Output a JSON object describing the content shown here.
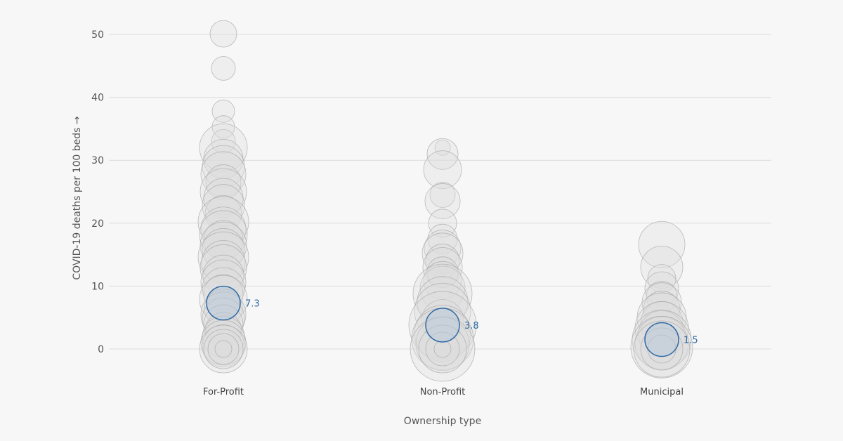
{
  "chart_data": {
    "type": "scatter",
    "ylabel": "COVID-19 deaths per 100 beds →",
    "xlabel": "Ownership type",
    "ylim": [
      0,
      52
    ],
    "yticks": [
      0,
      10,
      20,
      30,
      40,
      50
    ],
    "grid": true,
    "categories": [
      "For-Profit",
      "Non-Profit",
      "Municipal"
    ],
    "colors": {
      "bubble_stroke": "#a6a6a6",
      "bubble_fill": "#dedede",
      "median": "#2f6aa5"
    },
    "series": [
      {
        "category": "For-Profit",
        "median": 7.3,
        "median_label": "7.3",
        "points": [
          {
            "y": 50.1,
            "r": 19
          },
          {
            "y": 44.6,
            "r": 17
          },
          {
            "y": 37.8,
            "r": 16
          },
          {
            "y": 35.3,
            "r": 16
          },
          {
            "y": 33.0,
            "r": 17
          },
          {
            "y": 32.0,
            "r": 34
          },
          {
            "y": 30.2,
            "r": 28
          },
          {
            "y": 29.0,
            "r": 30
          },
          {
            "y": 27.8,
            "r": 32
          },
          {
            "y": 26.5,
            "r": 25
          },
          {
            "y": 25.0,
            "r": 33
          },
          {
            "y": 24.0,
            "r": 28
          },
          {
            "y": 22.8,
            "r": 30
          },
          {
            "y": 21.5,
            "r": 26
          },
          {
            "y": 20.2,
            "r": 36
          },
          {
            "y": 19.0,
            "r": 32
          },
          {
            "y": 18.2,
            "r": 34
          },
          {
            "y": 17.3,
            "r": 28
          },
          {
            "y": 16.5,
            "r": 33
          },
          {
            "y": 15.8,
            "r": 30
          },
          {
            "y": 14.6,
            "r": 36
          },
          {
            "y": 13.8,
            "r": 31
          },
          {
            "y": 12.9,
            "r": 33
          },
          {
            "y": 11.7,
            "r": 29
          },
          {
            "y": 10.6,
            "r": 32
          },
          {
            "y": 9.6,
            "r": 30
          },
          {
            "y": 8.7,
            "r": 28
          },
          {
            "y": 7.9,
            "r": 34
          },
          {
            "y": 6.5,
            "r": 27
          },
          {
            "y": 5.5,
            "r": 32
          },
          {
            "y": 4.8,
            "r": 30
          },
          {
            "y": 3.9,
            "r": 28
          },
          {
            "y": 2.9,
            "r": 26
          },
          {
            "y": 1.9,
            "r": 30
          },
          {
            "y": 1.0,
            "r": 32
          },
          {
            "y": 0.5,
            "r": 30
          },
          {
            "y": 0.0,
            "r": 34
          },
          {
            "y": 0.0,
            "r": 28
          },
          {
            "y": 0.0,
            "r": 22
          },
          {
            "y": 0.0,
            "r": 12
          }
        ]
      },
      {
        "category": "Non-Profit",
        "median": 3.8,
        "median_label": "3.8",
        "points": [
          {
            "y": 32.0,
            "r": 11
          },
          {
            "y": 31.0,
            "r": 22
          },
          {
            "y": 28.5,
            "r": 27
          },
          {
            "y": 24.5,
            "r": 18
          },
          {
            "y": 23.5,
            "r": 25
          },
          {
            "y": 20.0,
            "r": 20
          },
          {
            "y": 17.5,
            "r": 21
          },
          {
            "y": 16.0,
            "r": 26
          },
          {
            "y": 15.2,
            "r": 29
          },
          {
            "y": 14.0,
            "r": 24
          },
          {
            "y": 13.0,
            "r": 28
          },
          {
            "y": 12.2,
            "r": 22
          },
          {
            "y": 10.9,
            "r": 27
          },
          {
            "y": 9.6,
            "r": 32
          },
          {
            "y": 8.8,
            "r": 42
          },
          {
            "y": 7.5,
            "r": 36
          },
          {
            "y": 6.0,
            "r": 40
          },
          {
            "y": 4.5,
            "r": 30
          },
          {
            "y": 3.8,
            "r": 48
          },
          {
            "y": 2.5,
            "r": 40
          },
          {
            "y": 1.6,
            "r": 44
          },
          {
            "y": 0.8,
            "r": 38
          },
          {
            "y": 0.0,
            "r": 46
          },
          {
            "y": 0.0,
            "r": 34
          },
          {
            "y": 0.0,
            "r": 24
          },
          {
            "y": 0.0,
            "r": 12
          }
        ]
      },
      {
        "category": "Municipal",
        "median": 1.5,
        "median_label": "1.5",
        "points": [
          {
            "y": 16.6,
            "r": 33
          },
          {
            "y": 13.0,
            "r": 30
          },
          {
            "y": 11.2,
            "r": 20
          },
          {
            "y": 9.6,
            "r": 24
          },
          {
            "y": 8.3,
            "r": 22
          },
          {
            "y": 7.4,
            "r": 28
          },
          {
            "y": 6.3,
            "r": 26
          },
          {
            "y": 5.0,
            "r": 35
          },
          {
            "y": 4.2,
            "r": 30
          },
          {
            "y": 3.3,
            "r": 38
          },
          {
            "y": 2.4,
            "r": 33
          },
          {
            "y": 1.5,
            "r": 42
          },
          {
            "y": 0.9,
            "r": 38
          },
          {
            "y": 0.3,
            "r": 44
          },
          {
            "y": 0.0,
            "r": 40
          },
          {
            "y": 0.0,
            "r": 30
          },
          {
            "y": 0.0,
            "r": 20
          }
        ]
      }
    ]
  }
}
